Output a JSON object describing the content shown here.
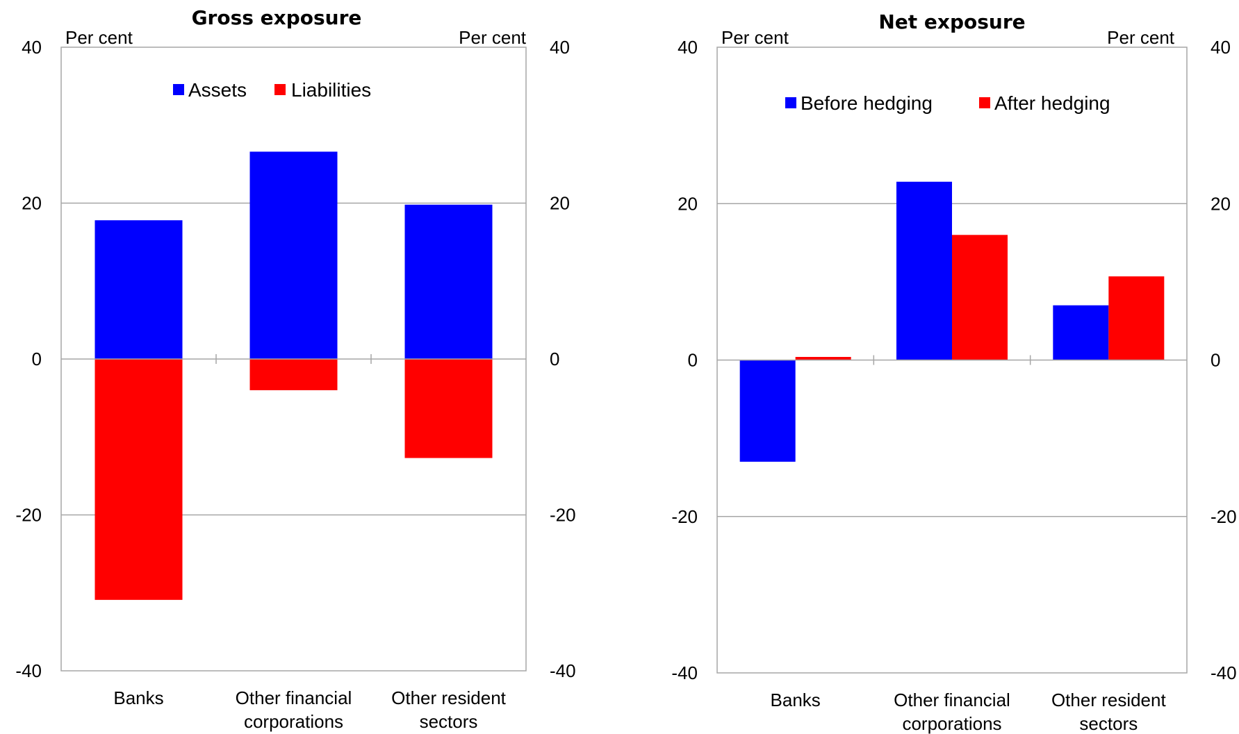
{
  "chart_data": [
    {
      "type": "bar",
      "title": "Gross exposure",
      "unit_left": "Per cent",
      "unit_right": "Per cent",
      "categories": [
        [
          "Banks"
        ],
        [
          "Other financial",
          "corporations"
        ],
        [
          "Other resident",
          "sectors"
        ]
      ],
      "series": [
        {
          "name": "Assets",
          "color": "#0000ff",
          "values": [
            17.8,
            26.6,
            19.8
          ]
        },
        {
          "name": "Liabilities",
          "color": "#ff0000",
          "values": [
            -30.9,
            -4.0,
            -12.7
          ]
        }
      ],
      "stacked": true,
      "ylim": [
        -40,
        40
      ],
      "yticks": [
        -40,
        -20,
        0,
        20,
        40
      ],
      "grid": true,
      "legend": "top-center"
    },
    {
      "type": "bar",
      "title": "Net exposure",
      "unit_left": "Per cent",
      "unit_right": "Per cent",
      "categories": [
        [
          "Banks"
        ],
        [
          "Other financial",
          "corporations"
        ],
        [
          "Other resident",
          "sectors"
        ]
      ],
      "series": [
        {
          "name": "Before hedging",
          "color": "#0000ff",
          "values": [
            -13.0,
            22.8,
            7.0
          ]
        },
        {
          "name": "After hedging",
          "color": "#ff0000",
          "values": [
            0.4,
            16.0,
            10.7
          ]
        }
      ],
      "stacked": false,
      "ylim": [
        -40,
        40
      ],
      "yticks": [
        -40,
        -20,
        0,
        20,
        40
      ],
      "grid": true,
      "legend": "top-center"
    }
  ]
}
